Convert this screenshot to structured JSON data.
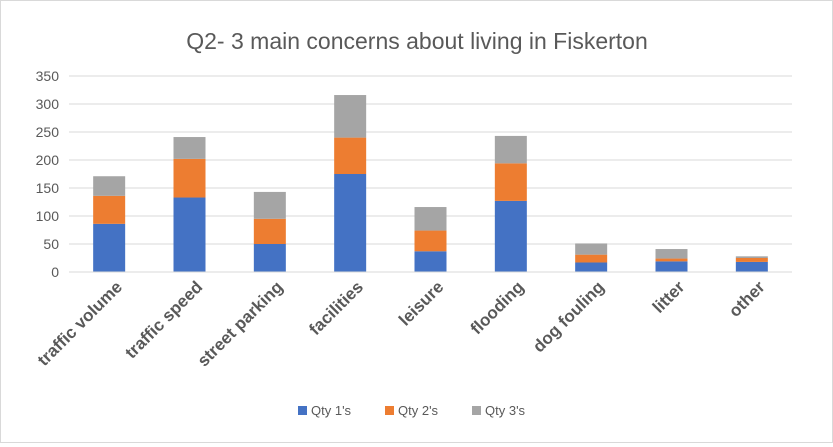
{
  "chart_data": {
    "type": "bar",
    "stacked": true,
    "title": "Q2- 3 main concerns about living in Fiskerton",
    "xlabel": "",
    "ylabel": "",
    "categories": [
      "traffic volume",
      "traffic speed",
      "street parking",
      "facilities",
      "leisure",
      "flooding",
      "dog fouling",
      "litter",
      "other"
    ],
    "series": [
      {
        "name": "Qty 1's",
        "color": "#4472c4",
        "values": [
          86,
          133,
          50,
          175,
          37,
          127,
          17,
          19,
          18
        ]
      },
      {
        "name": "Qty 2's",
        "color": "#ed7d31",
        "values": [
          50,
          69,
          45,
          65,
          37,
          67,
          14,
          5,
          7
        ]
      },
      {
        "name": "Qty 3's",
        "color": "#a5a5a5",
        "values": [
          35,
          39,
          48,
          76,
          42,
          49,
          20,
          17,
          3
        ]
      }
    ],
    "yticks": [
      0,
      50,
      100,
      150,
      200,
      250,
      300,
      350
    ],
    "ylim": [
      0,
      350
    ],
    "grid": true,
    "legend_position": "bottom"
  }
}
